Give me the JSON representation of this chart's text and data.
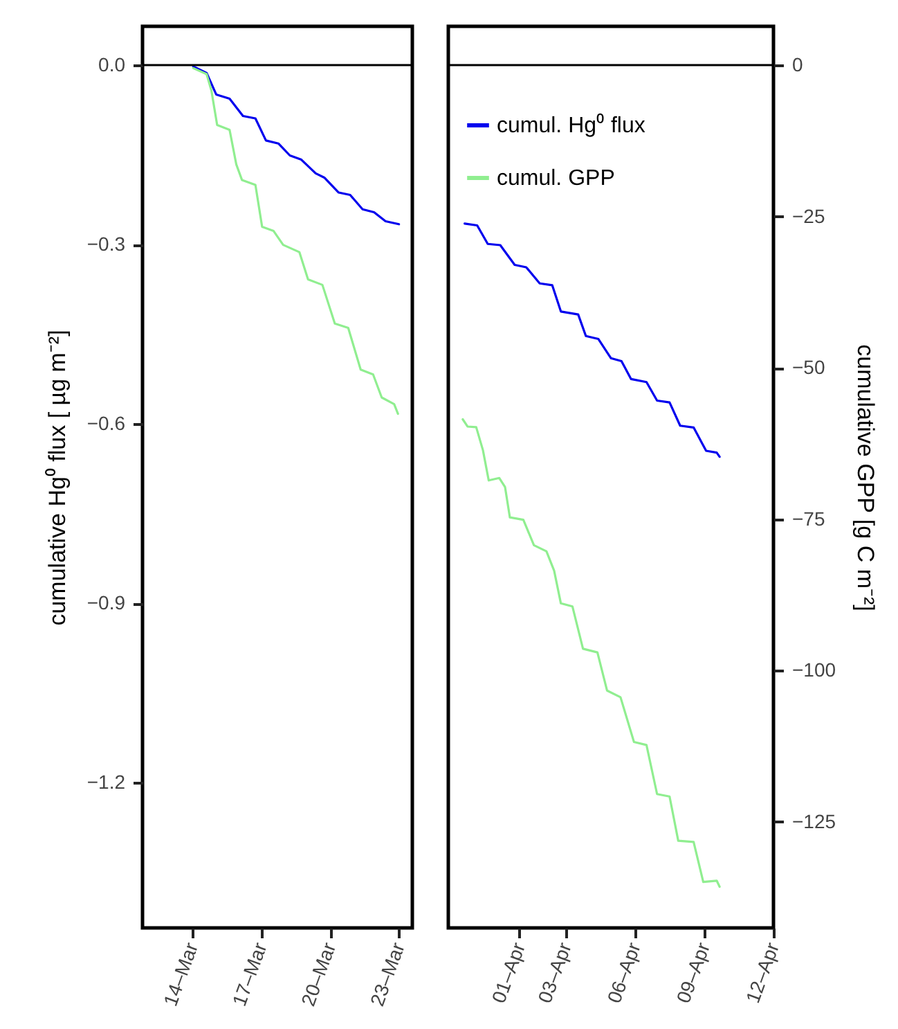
{
  "chart_data": [
    {
      "type": "line",
      "ylabel": "cumulative Hg⁰ flux [ µg m⁻²]",
      "xlim": [
        "--03-11T20:00",
        "--03-23T14:00"
      ],
      "xticks": [
        {
          "value": "--03-14",
          "label": "14–Mar"
        },
        {
          "value": "--03-17",
          "label": "17–Mar"
        },
        {
          "value": "--03-20",
          "label": "20–Mar"
        },
        {
          "value": "--03-23",
          "label": "23–Mar"
        }
      ],
      "ylim": [
        -1.443,
        0.065
      ],
      "yticks": [
        {
          "value": 0,
          "label": "0.0"
        },
        {
          "value": -0.3,
          "label": "−0.3"
        },
        {
          "value": -0.6,
          "label": "−0.6"
        },
        {
          "value": -0.9,
          "label": "−0.9"
        },
        {
          "value": -1.2,
          "label": "−1.2"
        }
      ],
      "y2lim": [
        -142.5,
        6.4
      ],
      "ref_lines": [
        {
          "axis": "y",
          "value": 0,
          "color": "#000000"
        }
      ],
      "series": [
        {
          "color": "#0000ee",
          "x": [
            "--03-14T01:00",
            "--03-14T15:00",
            "--03-15T01:00",
            "--03-15T15:00",
            "--03-16T05:00",
            "--03-16T18:00",
            "--03-17T05:00",
            "--03-17T18:00",
            "--03-18T06:00",
            "--03-18T18:00",
            "--03-19T09:00",
            "--03-19T18:00",
            "--03-20T09:00",
            "--03-20T21:00",
            "--03-21T10:00",
            "--03-21T22:00",
            "--03-22T10:00",
            "--03-23T00:00"
          ],
          "values": [
            -0.002,
            -0.013,
            -0.049,
            -0.056,
            -0.085,
            -0.089,
            -0.126,
            -0.131,
            -0.151,
            -0.158,
            -0.181,
            -0.188,
            -0.213,
            -0.217,
            -0.241,
            -0.246,
            -0.261,
            -0.266
          ]
        },
        {
          "color": "#90ee90",
          "axis": "y2",
          "x": [
            "--03-14T01:00",
            "--03-14T15:00",
            "--03-14T20:00",
            "--03-15T02:00",
            "--03-15T15:00",
            "--03-15T22:00",
            "--03-16T04:00",
            "--03-16T18:00",
            "--03-17T01:00",
            "--03-17T13:00",
            "--03-17T23:00",
            "--03-18T16:00",
            "--03-19T01:00",
            "--03-19T16:00",
            "--03-20T05:00",
            "--03-20T19:00",
            "--03-21T08:00",
            "--03-21T21:00",
            "--03-22T06:00",
            "--03-22T19:00",
            "--03-22T23:00"
          ],
          "values": [
            -0.5,
            -1.5,
            -4.2,
            -9.9,
            -10.7,
            -16.4,
            -19.0,
            -19.8,
            -26.7,
            -27.4,
            -29.7,
            -30.9,
            -35.4,
            -36.3,
            -42.7,
            -43.4,
            -50.3,
            -51.1,
            -54.9,
            -56.0,
            -57.6
          ]
        }
      ]
    },
    {
      "type": "line",
      "y2label": "cumulative GPP [g C m⁻²]",
      "legend": "top left",
      "xlim": [
        "--03-28T22:00",
        "--04-12T00:00"
      ],
      "xticks": [
        {
          "value": "--04-01",
          "label": "01–Apr"
        },
        {
          "value": "--04-03",
          "label": "03–Apr"
        },
        {
          "value": "--04-06",
          "label": "06–Apr"
        },
        {
          "value": "--04-09",
          "label": "09–Apr"
        },
        {
          "value": "--04-12",
          "label": "12–Apr"
        }
      ],
      "ylim": [
        -1.443,
        0.065
      ],
      "y2lim": [
        -142.5,
        6.4
      ],
      "y2ticks": [
        {
          "value": 0,
          "label": "0"
        },
        {
          "value": -25,
          "label": "−25"
        },
        {
          "value": -50,
          "label": "−50"
        },
        {
          "value": -75,
          "label": "−75"
        },
        {
          "value": -100,
          "label": "−100"
        },
        {
          "value": -125,
          "label": "−125"
        }
      ],
      "ref_lines": [
        {
          "axis": "y2",
          "value": 0,
          "color": "#000000"
        }
      ],
      "series": [
        {
          "name": "cumul. Hg⁰ flux",
          "color": "#0000ee",
          "x": [
            "--03-29T15:00",
            "--03-30T04:00",
            "--03-30T15:00",
            "--03-31T04:00",
            "--03-31T19:00",
            "--04-01T07:00",
            "--04-01T21:00",
            "--04-02T10:00",
            "--04-02T19:00",
            "--04-03T13:00",
            "--04-03T21:00",
            "--04-04T10:00",
            "--04-04T23:00",
            "--04-05T10:00",
            "--04-05T20:00",
            "--04-06T12:00",
            "--04-06T23:00",
            "--04-07T12:00",
            "--04-07T23:00",
            "--04-08T13:00",
            "--04-09T02:00",
            "--04-09T13:00",
            "--04-09T16:00"
          ],
          "values": [
            -0.265,
            -0.268,
            -0.299,
            -0.301,
            -0.334,
            -0.338,
            -0.365,
            -0.368,
            -0.412,
            -0.417,
            -0.453,
            -0.458,
            -0.49,
            -0.495,
            -0.525,
            -0.53,
            -0.561,
            -0.564,
            -0.603,
            -0.606,
            -0.645,
            -0.648,
            -0.655
          ]
        },
        {
          "name": "cumul. GPP",
          "color": "#90ee90",
          "axis": "y2",
          "x": [
            "--03-29T13:00",
            "--03-29T18:00",
            "--03-30T03:00",
            "--03-30T10:00",
            "--03-30T16:00",
            "--03-31T03:00",
            "--03-31T09:00",
            "--03-31T14:00",
            "--04-01T04:00",
            "--04-01T15:00",
            "--04-02T04:00",
            "--04-02T12:00",
            "--04-02T19:00",
            "--04-03T07:00",
            "--04-03T18:00",
            "--04-04T09:00",
            "--04-04T19:00",
            "--04-05T09:00",
            "--04-05T23:00",
            "--04-06T12:00",
            "--04-06T23:00",
            "--04-07T12:00",
            "--04-07T21:00",
            "--04-08T13:00",
            "--04-08T23:00",
            "--04-09T13:00",
            "--04-09T16:00"
          ],
          "values": [
            -58.5,
            -59.7,
            -59.8,
            -63.6,
            -68.6,
            -68.2,
            -69.7,
            -74.7,
            -75.1,
            -79.3,
            -80.3,
            -83.5,
            -88.9,
            -89.4,
            -96.4,
            -97.0,
            -103.3,
            -104.4,
            -111.8,
            -112.3,
            -120.4,
            -120.8,
            -128.1,
            -128.3,
            -134.9,
            -134.7,
            -135.7
          ]
        }
      ]
    }
  ]
}
